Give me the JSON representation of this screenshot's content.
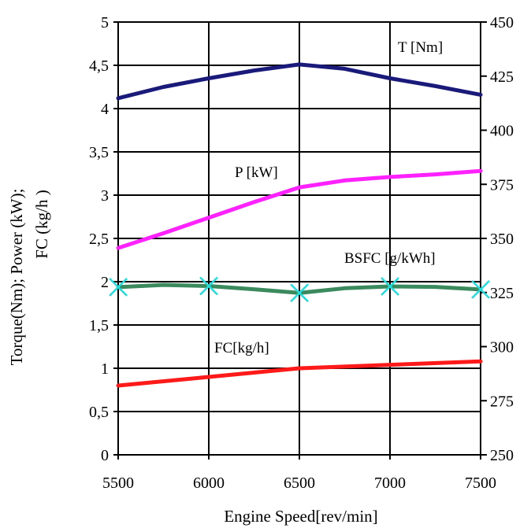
{
  "chart_data": {
    "type": "line",
    "xlabel": "Engine Speed[rev/min]",
    "ylabel_lines": [
      "Torque(Nm); Power (kW);",
      "FC (kg/h  )"
    ],
    "x_ticks": [
      5500,
      6000,
      6500,
      7000,
      7500
    ],
    "x_tick_labels": [
      "5500",
      "6000",
      "6500",
      "7000",
      "7500"
    ],
    "xlim": [
      5500,
      7500
    ],
    "left_axis": {
      "ylim": [
        0,
        5
      ],
      "ticks": [
        0,
        0.5,
        1,
        1.5,
        2,
        2.5,
        3,
        3.5,
        4,
        4.5,
        5
      ],
      "tick_labels": [
        "0",
        "0,5",
        "1",
        "1,5",
        "2",
        "2,5",
        "3",
        "3,5",
        "4",
        "4,5",
        "5"
      ]
    },
    "right_axis": {
      "ylim": [
        250,
        450
      ],
      "ticks": [
        250,
        275,
        300,
        325,
        350,
        375,
        400,
        425,
        450
      ],
      "tick_labels": [
        "250",
        "275",
        "300",
        "325",
        "350",
        "375",
        "400",
        "425",
        "450"
      ]
    },
    "grid": true,
    "series": [
      {
        "name": "T [Nm]",
        "axis": "left",
        "color": "#1a1a7a",
        "points": [
          [
            5500,
            4.12
          ],
          [
            5750,
            4.25
          ],
          [
            6000,
            4.35
          ],
          [
            6250,
            4.44
          ],
          [
            6500,
            4.51
          ],
          [
            6750,
            4.46
          ],
          [
            7000,
            4.35
          ],
          [
            7250,
            4.26
          ],
          [
            7500,
            4.16
          ]
        ]
      },
      {
        "name": "P [kW]",
        "axis": "left",
        "color": "#ff22ff",
        "points": [
          [
            5500,
            2.39
          ],
          [
            5750,
            2.56
          ],
          [
            6000,
            2.74
          ],
          [
            6250,
            2.92
          ],
          [
            6500,
            3.09
          ],
          [
            6750,
            3.17
          ],
          [
            7000,
            3.21
          ],
          [
            7250,
            3.24
          ],
          [
            7500,
            3.28
          ]
        ]
      },
      {
        "name": "BSFC [g/kWh]",
        "axis": "right",
        "color": "#3a8a5e",
        "marker_color": "#22dddd",
        "markers": [
          5500,
          6000,
          6500,
          7000,
          7500
        ],
        "points": [
          [
            5500,
            327.5
          ],
          [
            5750,
            328.5
          ],
          [
            6000,
            328.0
          ],
          [
            6250,
            326.5
          ],
          [
            6500,
            324.8
          ],
          [
            6750,
            327.0
          ],
          [
            7000,
            327.8
          ],
          [
            7250,
            327.6
          ],
          [
            7500,
            326.4
          ]
        ]
      },
      {
        "name": "FC[kg/h]",
        "axis": "left",
        "color": "#ff1a1a",
        "points": [
          [
            5500,
            0.8
          ],
          [
            6000,
            0.9
          ],
          [
            6500,
            1.0
          ],
          [
            7000,
            1.04
          ],
          [
            7500,
            1.08
          ]
        ]
      }
    ]
  }
}
